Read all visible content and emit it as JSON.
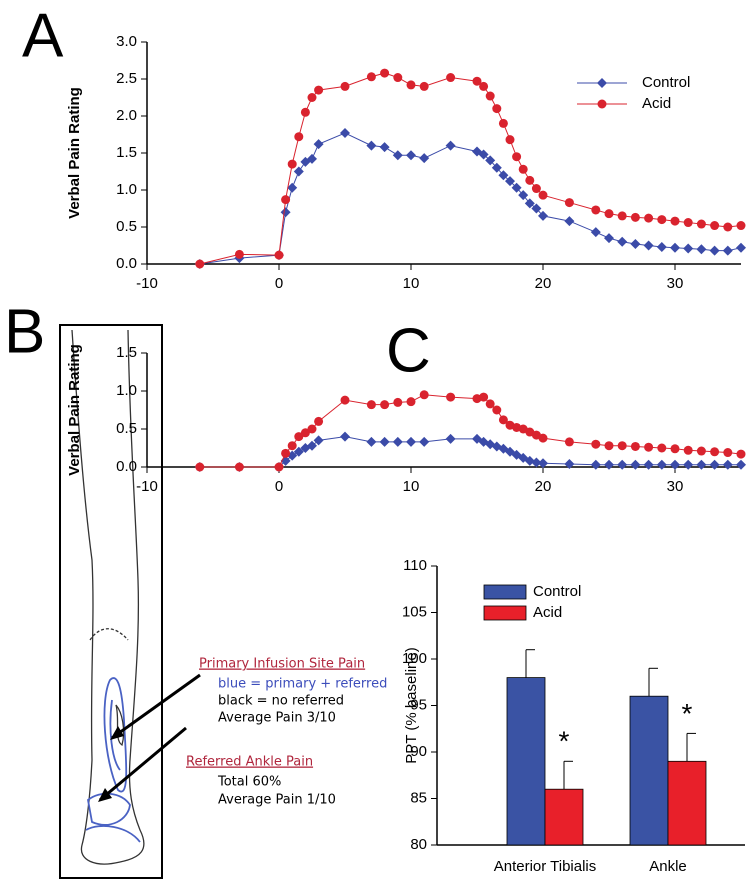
{
  "panel_labels": [
    "A",
    "B",
    "C"
  ],
  "leg_diagram": {
    "primary_site": {
      "title": "Primary Infusion Site Pain",
      "lines": [
        "blue = primary + referred",
        "black = no referred",
        "Average Pain 3/10"
      ]
    },
    "referred_site": {
      "title": "Referred Ankle Pain",
      "lines": [
        "Total 60%",
        "Average Pain 1/10"
      ]
    }
  },
  "chart_data": [
    {
      "type": "line",
      "ylabel": "Verbal Pain Rating",
      "x": [
        -6,
        -3,
        0,
        0.5,
        1,
        1.5,
        2,
        2.5,
        3,
        5,
        7,
        8,
        9,
        10,
        11,
        13,
        15,
        15.5,
        16,
        16.5,
        17,
        17.5,
        18,
        18.5,
        19,
        19.5,
        20,
        22,
        24,
        25,
        26,
        27,
        28,
        29,
        30,
        31,
        32,
        33,
        34,
        35
      ],
      "series": [
        {
          "name": "Control",
          "color": "#3b4ba8",
          "marker": "diamond",
          "values": [
            0,
            0.08,
            0.12,
            0.7,
            1.03,
            1.25,
            1.38,
            1.42,
            1.62,
            1.77,
            1.6,
            1.58,
            1.47,
            1.47,
            1.43,
            1.6,
            1.52,
            1.48,
            1.4,
            1.3,
            1.2,
            1.12,
            1.03,
            0.93,
            0.82,
            0.75,
            0.65,
            0.58,
            0.43,
            0.35,
            0.3,
            0.27,
            0.25,
            0.23,
            0.22,
            0.21,
            0.2,
            0.18,
            0.18,
            0.22
          ]
        },
        {
          "name": "Acid",
          "color": "#d9232e",
          "marker": "circle",
          "values": [
            0,
            0.13,
            0.12,
            0.87,
            1.35,
            1.72,
            2.05,
            2.25,
            2.35,
            2.4,
            2.53,
            2.58,
            2.52,
            2.42,
            2.4,
            2.52,
            2.47,
            2.4,
            2.27,
            2.1,
            1.9,
            1.68,
            1.45,
            1.28,
            1.13,
            1.02,
            0.93,
            0.83,
            0.73,
            0.68,
            0.65,
            0.63,
            0.62,
            0.6,
            0.58,
            0.56,
            0.54,
            0.52,
            0.5,
            0.52
          ]
        }
      ],
      "xlim": [
        -10,
        35
      ],
      "xticks": [
        -10,
        0,
        10,
        20,
        30
      ],
      "ylim": [
        0,
        3
      ],
      "yticks": [
        {
          "value": 0,
          "label": "0.0"
        },
        0.5,
        {
          "value": 1,
          "label": "1.0"
        },
        1.5,
        {
          "value": 2,
          "label": "2.0"
        },
        2.5,
        {
          "value": 3,
          "label": "3.0"
        }
      ],
      "legend": "upper-right"
    },
    {
      "type": "line",
      "ylabel": "Verbal Pain Rating",
      "x": [
        -6,
        -3,
        0,
        0.5,
        1,
        1.5,
        2,
        2.5,
        3,
        5,
        7,
        8,
        9,
        10,
        11,
        13,
        15,
        15.5,
        16,
        16.5,
        17,
        17.5,
        18,
        18.5,
        19,
        19.5,
        20,
        22,
        24,
        25,
        26,
        27,
        28,
        29,
        30,
        31,
        32,
        33,
        34,
        35
      ],
      "series": [
        {
          "color": "#3b4ba8",
          "marker": "diamond",
          "values": [
            0,
            0,
            0,
            0.08,
            0.15,
            0.2,
            0.25,
            0.28,
            0.35,
            0.4,
            0.33,
            0.33,
            0.33,
            0.33,
            0.33,
            0.37,
            0.37,
            0.33,
            0.3,
            0.27,
            0.24,
            0.2,
            0.16,
            0.12,
            0.08,
            0.06,
            0.05,
            0.04,
            0.03,
            0.03,
            0.03,
            0.03,
            0.03,
            0.03,
            0.03,
            0.03,
            0.03,
            0.03,
            0.03,
            0.03
          ]
        },
        {
          "color": "#d9232e",
          "marker": "circle",
          "values": [
            0,
            0,
            0,
            0.18,
            0.28,
            0.4,
            0.45,
            0.5,
            0.6,
            0.88,
            0.82,
            0.82,
            0.85,
            0.86,
            0.95,
            0.92,
            0.9,
            0.92,
            0.83,
            0.75,
            0.62,
            0.55,
            0.52,
            0.5,
            0.46,
            0.42,
            0.38,
            0.33,
            0.3,
            0.28,
            0.28,
            0.27,
            0.26,
            0.25,
            0.24,
            0.22,
            0.21,
            0.2,
            0.19,
            0.17
          ]
        }
      ],
      "xlim": [
        -10,
        35
      ],
      "xticks": [
        -10,
        0,
        10,
        20,
        30
      ],
      "ylim": [
        0,
        1.5
      ],
      "yticks": [
        {
          "value": 0,
          "label": "0.0"
        },
        0.5,
        {
          "value": 1,
          "label": "1.0"
        },
        1.5
      ]
    },
    {
      "type": "bar",
      "ylabel": "PPT (% baseline)",
      "categories": [
        "Anterior Tibialis",
        "Ankle"
      ],
      "series": [
        {
          "name": "Control",
          "color": "#3a53a4",
          "values": [
            98,
            96
          ],
          "errors": [
            3,
            3
          ]
        },
        {
          "name": "Acid",
          "color": "#e8202a",
          "values": [
            86,
            89
          ],
          "errors": [
            3,
            3
          ],
          "markers": [
            "*",
            "*"
          ]
        }
      ],
      "ylim": [
        80,
        110
      ],
      "yticks": [
        80,
        85,
        90,
        95,
        100,
        105,
        110
      ],
      "legend": "upper-left"
    }
  ]
}
